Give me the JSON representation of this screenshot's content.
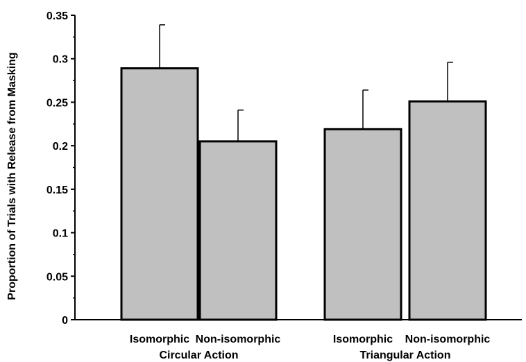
{
  "chart_data": {
    "type": "bar",
    "title": "",
    "xlabel": "",
    "ylabel": "Proportion of Trials with Release from Masking",
    "ylim": [
      0,
      0.35
    ],
    "yticks": [
      "0",
      "0.05",
      "0.1",
      "0.15",
      "0.2",
      "0.25",
      "0.3",
      "0.35"
    ],
    "grid": false,
    "categories": [
      "Isomorphic",
      "Non-isomorphic",
      "Isomorphic",
      "Non-isomorphic"
    ],
    "groups": [
      {
        "label": "Circular Action",
        "categories": [
          0,
          1
        ]
      },
      {
        "label": "Triangular Action",
        "categories": [
          2,
          3
        ]
      }
    ],
    "values": [
      0.289,
      0.205,
      0.219,
      0.251
    ],
    "error_upper": [
      0.05,
      0.036,
      0.045,
      0.045
    ],
    "bar_color": "#c0c0c0",
    "edge_color": "#000000"
  }
}
